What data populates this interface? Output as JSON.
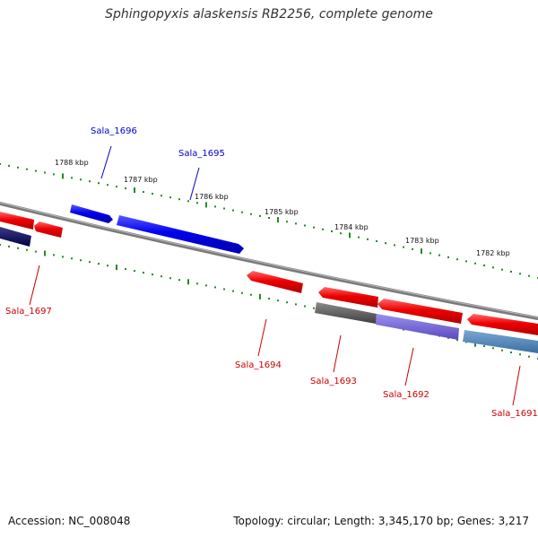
{
  "title": "Sphingopyxis alaskensis RB2256, complete genome",
  "footer": {
    "accession": "Accession: NC_008048",
    "summary": "Topology: circular; Length: 3,345,170 bp; Genes: 3,217"
  },
  "colors": {
    "forward_gene": "#0000ee",
    "reverse_gene": "#ee0000",
    "other_gene_dark": "#555555",
    "other_gene_purple": "#6a5acd",
    "other_gene_steel": "#4682b4",
    "other_gene_navy": "#000055",
    "backbone": "#888888",
    "tick": "#228b22"
  },
  "scale_labels": [
    "1788 kbp",
    "1787 kbp",
    "1786 kbp",
    "1785 kbp",
    "1784 kbp",
    "1783 kbp",
    "1782 kbp"
  ],
  "genes": [
    {
      "locus": "Sala_1696",
      "strand": "forward"
    },
    {
      "locus": "Sala_1695",
      "strand": "forward"
    },
    {
      "locus": "Sala_1697",
      "strand": "reverse"
    },
    {
      "locus": "Sala_1694",
      "strand": "reverse"
    },
    {
      "locus": "Sala_1693",
      "strand": "reverse"
    },
    {
      "locus": "Sala_1692",
      "strand": "reverse"
    },
    {
      "locus": "Sala_1691",
      "strand": "reverse"
    }
  ]
}
